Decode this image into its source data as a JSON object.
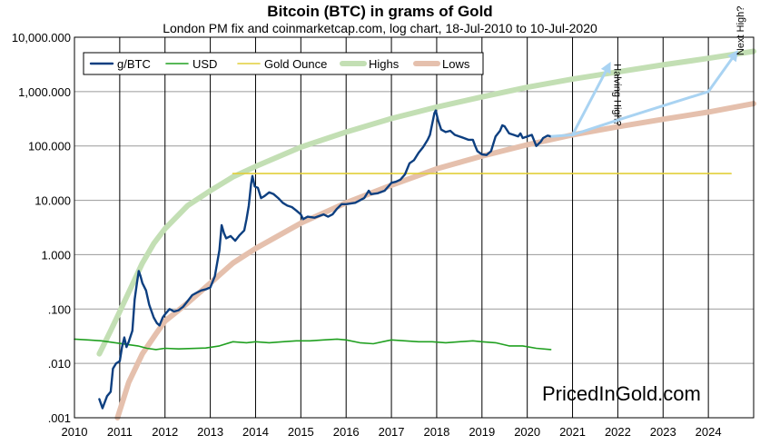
{
  "chart_data": {
    "type": "line",
    "title": "Bitcoin (BTC) in grams of Gold",
    "subtitle": "London PM fix and coinmarketcap.com, log chart, 18-Jul-2010 to 10-Jul-2020",
    "yscale": "log",
    "ylim": [
      0.001,
      10000
    ],
    "xlim": [
      2010,
      2025
    ],
    "x_ticks": [
      2010,
      2011,
      2012,
      2013,
      2014,
      2015,
      2016,
      2017,
      2018,
      2019,
      2020,
      2021,
      2022,
      2023,
      2024
    ],
    "y_ticks": [
      {
        "value": 10000,
        "label": "10,000.000"
      },
      {
        "value": 1000,
        "label": "1,000.000"
      },
      {
        "value": 100,
        "label": "100.000"
      },
      {
        "value": 10,
        "label": "10.000"
      },
      {
        "value": 1,
        "label": "1.000"
      },
      {
        "value": 0.1,
        "label": ".100"
      },
      {
        "value": 0.01,
        "label": ".010"
      },
      {
        "value": 0.001,
        "label": ".001"
      }
    ],
    "grid": true,
    "legend_position": "top-left",
    "series": [
      {
        "name": "g/BTC",
        "color": "#0d3f80",
        "points": [
          [
            2010.55,
            0.0022
          ],
          [
            2010.62,
            0.0015
          ],
          [
            2010.72,
            0.0025
          ],
          [
            2010.8,
            0.003
          ],
          [
            2010.85,
            0.008
          ],
          [
            2010.92,
            0.01
          ],
          [
            2011.0,
            0.011
          ],
          [
            2011.05,
            0.02
          ],
          [
            2011.1,
            0.03
          ],
          [
            2011.15,
            0.02
          ],
          [
            2011.2,
            0.025
          ],
          [
            2011.28,
            0.04
          ],
          [
            2011.33,
            0.15
          ],
          [
            2011.38,
            0.3
          ],
          [
            2011.42,
            0.5
          ],
          [
            2011.46,
            0.4
          ],
          [
            2011.5,
            0.3
          ],
          [
            2011.58,
            0.22
          ],
          [
            2011.65,
            0.12
          ],
          [
            2011.75,
            0.07
          ],
          [
            2011.82,
            0.055
          ],
          [
            2011.88,
            0.05
          ],
          [
            2011.95,
            0.07
          ],
          [
            2012.0,
            0.08
          ],
          [
            2012.1,
            0.1
          ],
          [
            2012.2,
            0.09
          ],
          [
            2012.3,
            0.095
          ],
          [
            2012.4,
            0.11
          ],
          [
            2012.5,
            0.14
          ],
          [
            2012.6,
            0.18
          ],
          [
            2012.7,
            0.2
          ],
          [
            2012.8,
            0.22
          ],
          [
            2012.9,
            0.23
          ],
          [
            2013.0,
            0.25
          ],
          [
            2013.1,
            0.4
          ],
          [
            2013.2,
            1.2
          ],
          [
            2013.25,
            3.5
          ],
          [
            2013.3,
            2.5
          ],
          [
            2013.35,
            2.0
          ],
          [
            2013.45,
            2.2
          ],
          [
            2013.55,
            1.8
          ],
          [
            2013.65,
            2.3
          ],
          [
            2013.75,
            2.8
          ],
          [
            2013.8,
            4.5
          ],
          [
            2013.85,
            8
          ],
          [
            2013.9,
            20
          ],
          [
            2013.93,
            28
          ],
          [
            2013.98,
            18
          ],
          [
            2014.05,
            17
          ],
          [
            2014.12,
            11
          ],
          [
            2014.2,
            12
          ],
          [
            2014.3,
            14
          ],
          [
            2014.4,
            13
          ],
          [
            2014.5,
            11
          ],
          [
            2014.6,
            9
          ],
          [
            2014.7,
            8
          ],
          [
            2014.8,
            7.5
          ],
          [
            2014.9,
            6.5
          ],
          [
            2015.0,
            5.5
          ],
          [
            2015.05,
            4.5
          ],
          [
            2015.15,
            5.0
          ],
          [
            2015.3,
            4.8
          ],
          [
            2015.5,
            5.5
          ],
          [
            2015.6,
            5.0
          ],
          [
            2015.7,
            5.5
          ],
          [
            2015.8,
            7
          ],
          [
            2015.9,
            8.5
          ],
          [
            2016.0,
            8.5
          ],
          [
            2016.2,
            9
          ],
          [
            2016.4,
            11
          ],
          [
            2016.5,
            15
          ],
          [
            2016.55,
            13
          ],
          [
            2016.7,
            13.5
          ],
          [
            2016.85,
            15
          ],
          [
            2017.0,
            21
          ],
          [
            2017.1,
            22
          ],
          [
            2017.2,
            24
          ],
          [
            2017.3,
            30
          ],
          [
            2017.4,
            48
          ],
          [
            2017.5,
            55
          ],
          [
            2017.6,
            75
          ],
          [
            2017.7,
            95
          ],
          [
            2017.8,
            130
          ],
          [
            2017.85,
            160
          ],
          [
            2017.95,
            400
          ],
          [
            2017.98,
            450
          ],
          [
            2018.03,
            300
          ],
          [
            2018.1,
            200
          ],
          [
            2018.2,
            180
          ],
          [
            2018.3,
            190
          ],
          [
            2018.4,
            160
          ],
          [
            2018.5,
            150
          ],
          [
            2018.6,
            140
          ],
          [
            2018.7,
            130
          ],
          [
            2018.8,
            130
          ],
          [
            2018.85,
            100
          ],
          [
            2018.9,
            80
          ],
          [
            2019.0,
            70
          ],
          [
            2019.1,
            68
          ],
          [
            2019.2,
            80
          ],
          [
            2019.3,
            150
          ],
          [
            2019.4,
            190
          ],
          [
            2019.45,
            240
          ],
          [
            2019.5,
            230
          ],
          [
            2019.6,
            170
          ],
          [
            2019.7,
            160
          ],
          [
            2019.8,
            150
          ],
          [
            2019.85,
            170
          ],
          [
            2019.9,
            140
          ],
          [
            2020.0,
            150
          ],
          [
            2020.1,
            160
          ],
          [
            2020.2,
            100
          ],
          [
            2020.3,
            120
          ],
          [
            2020.35,
            140
          ],
          [
            2020.45,
            155
          ],
          [
            2020.52,
            150
          ]
        ]
      },
      {
        "name": "USD",
        "color": "#21a021",
        "points": [
          [
            2010.0,
            0.028
          ],
          [
            2010.3,
            0.027
          ],
          [
            2010.6,
            0.026
          ],
          [
            2010.9,
            0.024
          ],
          [
            2011.2,
            0.022
          ],
          [
            2011.4,
            0.021
          ],
          [
            2011.6,
            0.019
          ],
          [
            2011.8,
            0.018
          ],
          [
            2012.0,
            0.019
          ],
          [
            2012.3,
            0.0185
          ],
          [
            2012.6,
            0.0188
          ],
          [
            2012.9,
            0.0192
          ],
          [
            2013.2,
            0.021
          ],
          [
            2013.5,
            0.025
          ],
          [
            2013.8,
            0.024
          ],
          [
            2014.0,
            0.025
          ],
          [
            2014.3,
            0.024
          ],
          [
            2014.6,
            0.025
          ],
          [
            2014.9,
            0.026
          ],
          [
            2015.2,
            0.026
          ],
          [
            2015.5,
            0.027
          ],
          [
            2015.8,
            0.028
          ],
          [
            2016.0,
            0.027
          ],
          [
            2016.3,
            0.024
          ],
          [
            2016.6,
            0.023
          ],
          [
            2016.9,
            0.026
          ],
          [
            2017.0,
            0.027
          ],
          [
            2017.3,
            0.026
          ],
          [
            2017.6,
            0.025
          ],
          [
            2017.9,
            0.025
          ],
          [
            2018.2,
            0.024
          ],
          [
            2018.5,
            0.025
          ],
          [
            2018.8,
            0.026
          ],
          [
            2019.0,
            0.025
          ],
          [
            2019.3,
            0.024
          ],
          [
            2019.6,
            0.021
          ],
          [
            2019.9,
            0.021
          ],
          [
            2020.2,
            0.019
          ],
          [
            2020.52,
            0.018
          ]
        ]
      },
      {
        "name": "Gold Ounce",
        "color": "#e2cf3a",
        "points": [
          [
            2013.5,
            31.1
          ],
          [
            2024.5,
            31.1
          ]
        ]
      },
      {
        "name": "Highs",
        "color": "#c3dfb4",
        "points": [
          [
            2010.55,
            0.015
          ],
          [
            2010.8,
            0.04
          ],
          [
            2011.0,
            0.09
          ],
          [
            2011.25,
            0.25
          ],
          [
            2011.5,
            0.7
          ],
          [
            2011.75,
            1.6
          ],
          [
            2012.0,
            3
          ],
          [
            2012.5,
            8
          ],
          [
            2013.0,
            15
          ],
          [
            2013.5,
            27
          ],
          [
            2014.0,
            42
          ],
          [
            2015.0,
            95
          ],
          [
            2016.0,
            180
          ],
          [
            2017.0,
            320
          ],
          [
            2018.0,
            520
          ],
          [
            2019.0,
            800
          ],
          [
            2020.0,
            1200
          ],
          [
            2021.0,
            1700
          ],
          [
            2022.0,
            2300
          ],
          [
            2023.0,
            3100
          ],
          [
            2024.0,
            4100
          ],
          [
            2025.0,
            5500
          ]
        ]
      },
      {
        "name": "Lows",
        "color": "#e5c0ad",
        "points": [
          [
            2010.95,
            0.001
          ],
          [
            2011.2,
            0.0045
          ],
          [
            2011.5,
            0.015
          ],
          [
            2011.8,
            0.035
          ],
          [
            2012.0,
            0.06
          ],
          [
            2012.5,
            0.13
          ],
          [
            2013.0,
            0.3
          ],
          [
            2013.5,
            0.7
          ],
          [
            2014.0,
            1.3
          ],
          [
            2015.0,
            3.8
          ],
          [
            2016.0,
            9
          ],
          [
            2017.0,
            19
          ],
          [
            2018.0,
            38
          ],
          [
            2019.0,
            65
          ],
          [
            2020.0,
            105
          ],
          [
            2021.0,
            160
          ],
          [
            2022.0,
            225
          ],
          [
            2023.0,
            310
          ],
          [
            2024.0,
            420
          ],
          [
            2025.0,
            600
          ]
        ]
      }
    ],
    "projections": [
      {
        "label": "Halving High?",
        "color": "#a9d3f2",
        "points": [
          [
            2020.52,
            150
          ],
          [
            2021.0,
            160
          ],
          [
            2021.8,
            3000
          ]
        ]
      },
      {
        "label": "Next High?",
        "color": "#a9d3f2",
        "points": [
          [
            2021.0,
            160
          ],
          [
            2022.0,
            300
          ],
          [
            2023.0,
            550
          ],
          [
            2024.0,
            1000
          ],
          [
            2024.6,
            5000
          ]
        ]
      }
    ]
  },
  "legend": [
    {
      "label": "g/BTC",
      "color": "#0d3f80"
    },
    {
      "label": "USD",
      "color": "#21a021"
    },
    {
      "label": "Gold Ounce",
      "color": "#e2cf3a"
    },
    {
      "label": "Highs",
      "color": "#c3dfb4"
    },
    {
      "label": "Lows",
      "color": "#e5c0ad"
    }
  ],
  "watermark": "PricedInGold.com"
}
